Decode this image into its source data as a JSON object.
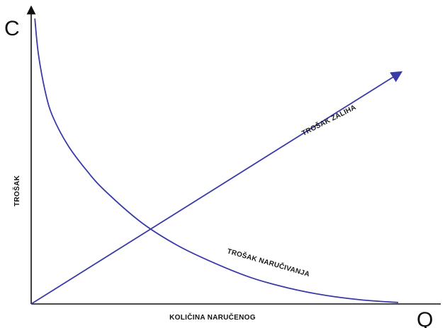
{
  "chart_data": {
    "type": "line",
    "title": "",
    "y_axis_symbol": "C",
    "x_axis_symbol": "Q",
    "ylabel": "TROŠAK",
    "xlabel": "KOLIČINA NARUČENOG",
    "grid": false,
    "legend": "none",
    "colors": {
      "series": "#3a3aa8",
      "axis": "#111111"
    },
    "series": [
      {
        "name": "TROŠAK ZALIHA",
        "shape": "linear-increasing",
        "arrow": true,
        "x": [
          0,
          1
        ],
        "y": [
          0,
          0.79
        ]
      },
      {
        "name": "TROŠAK NARUČIVANJA",
        "shape": "hyperbolic-decreasing",
        "x": [
          0.01,
          0.02,
          0.04,
          0.06,
          0.1,
          0.15,
          0.2,
          0.3,
          0.4,
          0.5,
          0.6,
          0.7,
          0.8,
          0.9,
          1.0
        ],
        "y": [
          0.98,
          0.855,
          0.72,
          0.64,
          0.545,
          0.46,
          0.39,
          0.28,
          0.2,
          0.14,
          0.09,
          0.055,
          0.03,
          0.014,
          0.005
        ]
      }
    ]
  }
}
